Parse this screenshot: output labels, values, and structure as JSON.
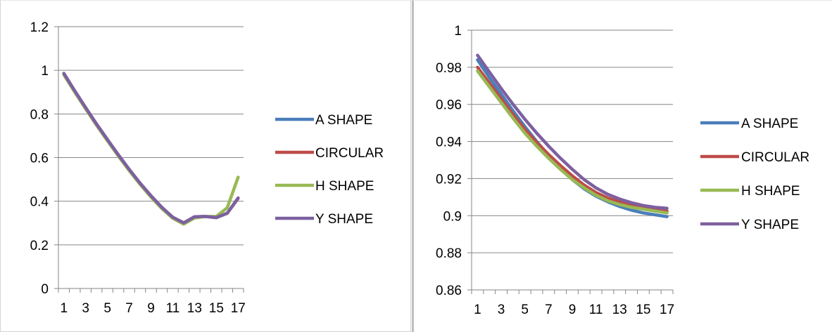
{
  "chart_data": [
    {
      "type": "line",
      "title": "",
      "xlabel": "",
      "ylabel": "",
      "x": [
        1,
        2,
        3,
        4,
        5,
        6,
        7,
        8,
        9,
        10,
        11,
        12,
        13,
        14,
        15,
        16,
        17
      ],
      "x_tick_labels": [
        "1",
        "3",
        "5",
        "7",
        "9",
        "11",
        "13",
        "15",
        "17"
      ],
      "ylim": [
        0,
        1.2
      ],
      "y_tick_labels": [
        "0",
        "0.2",
        "0.4",
        "0.6",
        "0.8",
        "1",
        "1.2"
      ],
      "grid": "horizontal",
      "legend_position": "right",
      "series": [
        {
          "name": "A SHAPE",
          "color": "#4a7ebb",
          "values": [
            0.985,
            0.905,
            0.828,
            0.753,
            0.682,
            0.612,
            0.545,
            0.482,
            0.424,
            0.371,
            0.326,
            0.3,
            0.328,
            0.33,
            0.325,
            0.345,
            0.413
          ]
        },
        {
          "name": "CIRCULAR",
          "color": "#be4b48",
          "values": [
            0.985,
            0.905,
            0.828,
            0.753,
            0.682,
            0.612,
            0.545,
            0.482,
            0.424,
            0.371,
            0.326,
            0.3,
            0.328,
            0.33,
            0.325,
            0.345,
            0.413
          ]
        },
        {
          "name": "H SHAPE",
          "color": "#98b954",
          "values": [
            0.98,
            0.9,
            0.823,
            0.748,
            0.677,
            0.607,
            0.54,
            0.477,
            0.419,
            0.366,
            0.322,
            0.295,
            0.323,
            0.33,
            0.33,
            0.37,
            0.51
          ]
        },
        {
          "name": "Y SHAPE",
          "color": "#7d60a0",
          "values": [
            0.986,
            0.906,
            0.829,
            0.754,
            0.683,
            0.613,
            0.546,
            0.483,
            0.425,
            0.372,
            0.327,
            0.301,
            0.329,
            0.33,
            0.325,
            0.345,
            0.415
          ]
        }
      ]
    },
    {
      "type": "line",
      "title": "",
      "xlabel": "",
      "ylabel": "",
      "x": [
        1,
        2,
        3,
        4,
        5,
        6,
        7,
        8,
        9,
        10,
        11,
        12,
        13,
        14,
        15,
        16,
        17
      ],
      "x_tick_labels": [
        "1",
        "3",
        "5",
        "7",
        "9",
        "11",
        "13",
        "15",
        "17"
      ],
      "ylim": [
        0.86,
        1
      ],
      "y_tick_labels": [
        "0.86",
        "0.88",
        "0.9",
        "0.92",
        "0.94",
        "0.96",
        "0.98",
        "1"
      ],
      "grid": "horizontal",
      "legend_position": "right",
      "series": [
        {
          "name": "A SHAPE",
          "color": "#4a7ebb",
          "values": [
            0.984,
            0.9745,
            0.9655,
            0.9565,
            0.948,
            0.94,
            0.9325,
            0.9255,
            0.9195,
            0.9145,
            0.9105,
            0.9075,
            0.905,
            0.903,
            0.9015,
            0.9005,
            0.8995
          ]
        },
        {
          "name": "CIRCULAR",
          "color": "#be4b48",
          "values": [
            0.98,
            0.9715,
            0.963,
            0.9545,
            0.9465,
            0.9395,
            0.933,
            0.927,
            0.9215,
            0.9165,
            0.9125,
            0.9095,
            0.9075,
            0.9055,
            0.9045,
            0.9035,
            0.9025
          ]
        },
        {
          "name": "H SHAPE",
          "color": "#98b954",
          "values": [
            0.978,
            0.9695,
            0.961,
            0.9525,
            0.9445,
            0.9375,
            0.931,
            0.925,
            0.9195,
            0.915,
            0.911,
            0.908,
            0.906,
            0.9045,
            0.9035,
            0.9025,
            0.9015
          ]
        },
        {
          "name": "Y SHAPE",
          "color": "#7d60a0",
          "values": [
            0.9865,
            0.9775,
            0.9685,
            0.96,
            0.952,
            0.9445,
            0.9375,
            0.931,
            0.925,
            0.9195,
            0.915,
            0.9115,
            0.909,
            0.907,
            0.9055,
            0.9045,
            0.904
          ]
        }
      ]
    }
  ]
}
